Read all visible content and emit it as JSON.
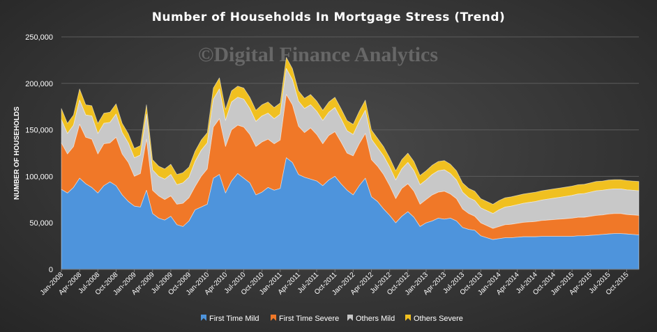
{
  "chart_data": {
    "type": "area",
    "stacked": true,
    "title": "Number of Households  In Mortgage Stress (Trend)",
    "watermark": "©Digital Finance Analytics",
    "xlabel": "",
    "ylabel": "NUMBER OF HOUSEHOLDS",
    "ylim": [
      0,
      250000
    ],
    "yticks": [
      0,
      50000,
      100000,
      150000,
      200000,
      250000
    ],
    "ytick_labels": [
      "0",
      "50,000",
      "100,000",
      "150,000",
      "200,000",
      "250,000"
    ],
    "grid": true,
    "legend_position": "bottom",
    "x_labels": [
      "Jan-2008",
      "Apr-2008",
      "Jul-2008",
      "Oct-2008",
      "Jan-2009",
      "Apr-2009",
      "Jul-2009",
      "Oct-2009",
      "Jan-2010",
      "Apr-2010",
      "Jul-2010",
      "Oct-2010",
      "Jan-2011",
      "Apr-2011",
      "Jul-2011",
      "Oct-2011",
      "Jan-2012",
      "Apr-2012",
      "Jul-2012",
      "Oct-2012",
      "Jan-2013",
      "Apr-2013",
      "Jul-2013",
      "Oct-2013",
      "Jan-2014",
      "Apr-2014",
      "Jul-2014",
      "Oct-2014",
      "Jan-2015",
      "Apr-2015",
      "Jul-2015",
      "Oct-2015"
    ],
    "x": [
      "Jan-2008",
      "Feb-2008",
      "Mar-2008",
      "Apr-2008",
      "May-2008",
      "Jun-2008",
      "Jul-2008",
      "Aug-2008",
      "Sep-2008",
      "Oct-2008",
      "Nov-2008",
      "Dec-2008",
      "Jan-2009",
      "Feb-2009",
      "Mar-2009",
      "Apr-2009",
      "May-2009",
      "Jun-2009",
      "Jul-2009",
      "Aug-2009",
      "Sep-2009",
      "Oct-2009",
      "Nov-2009",
      "Dec-2009",
      "Jan-2010",
      "Feb-2010",
      "Mar-2010",
      "Apr-2010",
      "May-2010",
      "Jun-2010",
      "Jul-2010",
      "Aug-2010",
      "Sep-2010",
      "Oct-2010",
      "Nov-2010",
      "Dec-2010",
      "Jan-2011",
      "Feb-2011",
      "Mar-2011",
      "Apr-2011",
      "May-2011",
      "Jun-2011",
      "Jul-2011",
      "Aug-2011",
      "Sep-2011",
      "Oct-2011",
      "Nov-2011",
      "Dec-2011",
      "Jan-2012",
      "Feb-2012",
      "Mar-2012",
      "Apr-2012",
      "May-2012",
      "Jun-2012",
      "Jul-2012",
      "Aug-2012",
      "Sep-2012",
      "Oct-2012",
      "Nov-2012",
      "Dec-2012",
      "Jan-2013",
      "Feb-2013",
      "Mar-2013",
      "Apr-2013",
      "May-2013",
      "Jun-2013",
      "Jul-2013",
      "Aug-2013",
      "Sep-2013",
      "Oct-2013",
      "Nov-2013",
      "Dec-2013",
      "Jan-2014",
      "Feb-2014",
      "Mar-2014",
      "Apr-2014",
      "May-2014",
      "Jun-2014",
      "Jul-2014",
      "Aug-2014",
      "Sep-2014",
      "Oct-2014",
      "Nov-2014",
      "Dec-2014",
      "Jan-2015",
      "Feb-2015",
      "Mar-2015",
      "Apr-2015",
      "May-2015",
      "Jun-2015",
      "Jul-2015",
      "Aug-2015",
      "Sep-2015",
      "Oct-2015",
      "Nov-2015",
      "Dec-2015"
    ],
    "series": [
      {
        "name": "First Time Mild",
        "color": "#4e94dc",
        "values": [
          86000,
          82000,
          88000,
          98000,
          92000,
          88000,
          82000,
          90000,
          94000,
          90000,
          80000,
          73000,
          68000,
          67000,
          85000,
          60000,
          55000,
          53000,
          57000,
          48000,
          46000,
          52000,
          64000,
          67000,
          70000,
          98000,
          102000,
          82000,
          95000,
          103000,
          98000,
          93000,
          80000,
          83000,
          88000,
          85000,
          87000,
          120000,
          115000,
          102000,
          99000,
          97000,
          95000,
          90000,
          96000,
          100000,
          92000,
          85000,
          80000,
          90000,
          98000,
          78000,
          73000,
          65000,
          58000,
          50000,
          57000,
          62000,
          56000,
          46000,
          50000,
          52000,
          55000,
          54000,
          55000,
          52000,
          45000,
          43000,
          42000,
          36000,
          34000,
          32000,
          33000,
          34000,
          34000,
          34500,
          35000,
          35000,
          35000,
          35500,
          35500,
          35500,
          35500,
          35500,
          35500,
          36000,
          36000,
          36500,
          37000,
          37500,
          38000,
          38500,
          38500,
          38000,
          37500,
          37000
        ]
      },
      {
        "name": "First Time Severe",
        "color": "#f07828",
        "values": [
          50000,
          42000,
          44000,
          58000,
          50000,
          52000,
          42000,
          45000,
          42000,
          52000,
          44000,
          42000,
          32000,
          36000,
          55000,
          25000,
          24000,
          22000,
          22000,
          22000,
          25000,
          25000,
          25000,
          33000,
          38000,
          55000,
          60000,
          50000,
          55000,
          52000,
          55000,
          52000,
          52000,
          54000,
          52000,
          50000,
          52000,
          68000,
          62000,
          52000,
          48000,
          55000,
          50000,
          45000,
          48000,
          48000,
          45000,
          40000,
          42000,
          45000,
          48000,
          40000,
          38000,
          37000,
          32000,
          26000,
          30000,
          30000,
          28000,
          24000,
          25000,
          28000,
          28000,
          30000,
          26000,
          24000,
          20000,
          17000,
          15000,
          14000,
          13000,
          12000,
          13000,
          14000,
          14500,
          15000,
          15500,
          16000,
          16500,
          17000,
          17500,
          18000,
          18500,
          19000,
          19500,
          20000,
          20000,
          20500,
          21000,
          21000,
          21500,
          21500,
          21500,
          21000,
          21000,
          21000
        ]
      },
      {
        "name": "Others Mild",
        "color": "#c8c8c8",
        "values": [
          25000,
          22000,
          23000,
          26000,
          24000,
          25000,
          22000,
          22000,
          22000,
          25000,
          23000,
          21000,
          20000,
          20000,
          27000,
          22000,
          21000,
          22000,
          23000,
          21000,
          22000,
          22000,
          27000,
          28000,
          28000,
          30000,
          32000,
          28000,
          30000,
          30000,
          30000,
          28000,
          27000,
          28000,
          28000,
          27000,
          28000,
          28000,
          27000,
          27000,
          26000,
          25000,
          25000,
          25000,
          25000,
          26000,
          25000,
          24000,
          23000,
          24000,
          25000,
          22000,
          20000,
          20000,
          20000,
          20000,
          21000,
          23000,
          22000,
          21000,
          21000,
          22000,
          23000,
          23000,
          22000,
          20000,
          18000,
          17000,
          17000,
          16000,
          16000,
          16000,
          18000,
          19000,
          19500,
          20000,
          20500,
          21000,
          21500,
          22000,
          22500,
          23000,
          23500,
          24000,
          24500,
          25000,
          25500,
          26000,
          26500,
          26500,
          26500,
          26500,
          26500,
          26500,
          26500,
          26500
        ]
      },
      {
        "name": "Others Severe",
        "color": "#f0c020",
        "values": [
          12000,
          11000,
          11000,
          12000,
          11000,
          11000,
          11000,
          11000,
          11000,
          11000,
          10000,
          10000,
          10000,
          10000,
          10000,
          11000,
          11000,
          11000,
          11000,
          11000,
          11000,
          11000,
          11000,
          11000,
          11000,
          12000,
          12000,
          12000,
          12000,
          12000,
          12000,
          12000,
          12000,
          12000,
          12000,
          12000,
          12000,
          12000,
          12000,
          11000,
          11000,
          11000,
          11000,
          11000,
          11000,
          11000,
          11000,
          11000,
          11000,
          11000,
          11000,
          10000,
          10000,
          10000,
          10000,
          10000,
          10000,
          10000,
          10000,
          10000,
          10000,
          10000,
          10000,
          10000,
          10000,
          10000,
          10000,
          10000,
          10000,
          10000,
          10000,
          10000,
          10000,
          10000,
          10000,
          10000,
          10000,
          10000,
          10000,
          10000,
          10000,
          10000,
          10000,
          10000,
          10000,
          10000,
          10000,
          10000,
          10000,
          10000,
          10000,
          10000,
          10000,
          10000,
          10000,
          10000
        ]
      }
    ]
  }
}
